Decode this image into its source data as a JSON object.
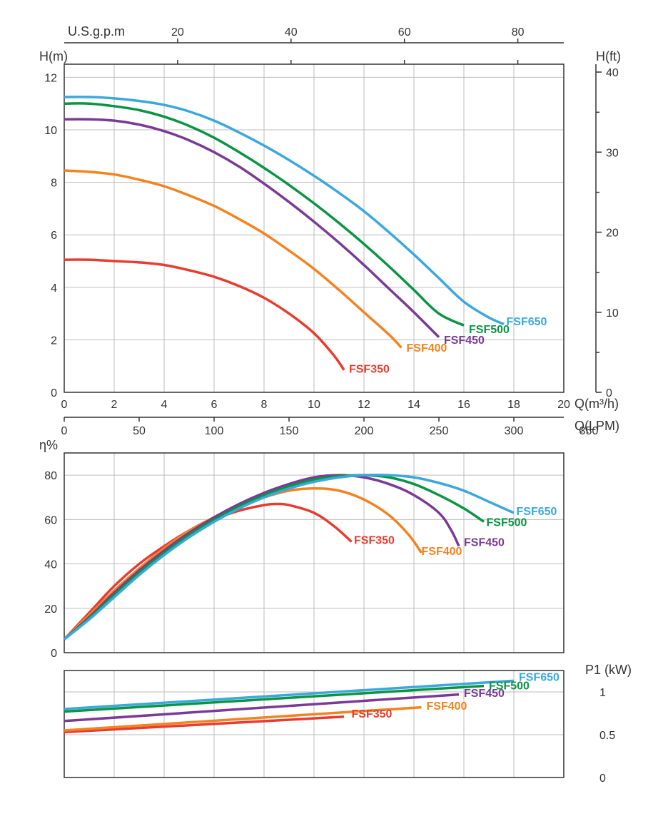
{
  "colors": {
    "fsf350": "#e73c2f",
    "fsf400": "#f58220",
    "fsf450": "#7a3a96",
    "fsf500": "#0b9444",
    "fsf650": "#3aa8dd",
    "grid": "#bdbdbd",
    "axis": "#333333",
    "bg": "#ffffff"
  },
  "labels": {
    "top_axis": "U.S.g.p.m",
    "left_axis_1": "H(m)",
    "right_axis_1": "H(ft)",
    "bottom_axis_1a": "Q(m³/h)",
    "bottom_axis_1b": "Q(LPM)",
    "left_axis_2": "η%",
    "right_axis_3": "P1 (kW)",
    "fsf350": "FSF350",
    "fsf400": "FSF400",
    "fsf450": "FSF450",
    "fsf500": "FSF500",
    "fsf650": "FSF650"
  },
  "font": {
    "axis_label_size": 18,
    "tick_size": 16,
    "series_size": 16
  },
  "chart1": {
    "type": "line",
    "xlim": [
      0,
      20
    ],
    "ylim": [
      0,
      12.5
    ],
    "xticks": [
      0,
      2,
      4,
      6,
      8,
      10,
      12,
      14,
      16,
      18,
      20
    ],
    "yticks": [
      0,
      2,
      4,
      6,
      8,
      10,
      12
    ],
    "top_ticks": [
      20,
      40,
      60,
      80
    ],
    "top_tick_x_m3h": [
      4.54,
      9.08,
      13.62,
      18.16
    ],
    "right_ticks": [
      0,
      10,
      20,
      30,
      40
    ],
    "right_tick_m": [
      0,
      3.05,
      6.1,
      9.15,
      12.2
    ],
    "right_minor_m": [
      1.52,
      4.57,
      7.62,
      10.67
    ],
    "lpm_ticks": [
      0,
      50,
      100,
      150,
      200,
      250,
      300,
      350
    ],
    "lpm_tick_x_m3h": [
      0,
      3,
      6,
      9,
      12,
      15,
      18,
      21
    ],
    "series": {
      "fsf350": [
        [
          0,
          5.05
        ],
        [
          1,
          5.05
        ],
        [
          2,
          5.0
        ],
        [
          3,
          4.95
        ],
        [
          4,
          4.85
        ],
        [
          5,
          4.65
        ],
        [
          6,
          4.4
        ],
        [
          7,
          4.05
        ],
        [
          8,
          3.6
        ],
        [
          9,
          3.0
        ],
        [
          10,
          2.25
        ],
        [
          10.8,
          1.4
        ],
        [
          11.2,
          0.85
        ]
      ],
      "fsf400": [
        [
          0,
          8.45
        ],
        [
          1,
          8.4
        ],
        [
          2,
          8.3
        ],
        [
          3,
          8.1
        ],
        [
          4,
          7.85
        ],
        [
          5,
          7.5
        ],
        [
          6,
          7.1
        ],
        [
          7,
          6.6
        ],
        [
          8,
          6.05
        ],
        [
          9,
          5.4
        ],
        [
          10,
          4.7
        ],
        [
          11,
          3.9
        ],
        [
          12,
          3.05
        ],
        [
          13,
          2.2
        ],
        [
          13.5,
          1.7
        ]
      ],
      "fsf450": [
        [
          0,
          10.4
        ],
        [
          1,
          10.4
        ],
        [
          2,
          10.35
        ],
        [
          3,
          10.2
        ],
        [
          4,
          9.95
        ],
        [
          5,
          9.6
        ],
        [
          6,
          9.15
        ],
        [
          7,
          8.6
        ],
        [
          8,
          7.95
        ],
        [
          9,
          7.25
        ],
        [
          10,
          6.5
        ],
        [
          11,
          5.7
        ],
        [
          12,
          4.85
        ],
        [
          13,
          3.95
        ],
        [
          14,
          3.05
        ],
        [
          15,
          2.1
        ]
      ],
      "fsf500": [
        [
          0,
          11.0
        ],
        [
          1,
          11.0
        ],
        [
          2,
          10.9
        ],
        [
          3,
          10.75
        ],
        [
          4,
          10.5
        ],
        [
          5,
          10.15
        ],
        [
          6,
          9.7
        ],
        [
          7,
          9.15
        ],
        [
          8,
          8.55
        ],
        [
          9,
          7.9
        ],
        [
          10,
          7.2
        ],
        [
          11,
          6.45
        ],
        [
          12,
          5.65
        ],
        [
          13,
          4.8
        ],
        [
          14,
          3.9
        ],
        [
          15,
          3.0
        ],
        [
          16,
          2.55
        ]
      ],
      "fsf650": [
        [
          0,
          11.25
        ],
        [
          1,
          11.25
        ],
        [
          2,
          11.2
        ],
        [
          3,
          11.1
        ],
        [
          4,
          10.95
        ],
        [
          5,
          10.7
        ],
        [
          6,
          10.35
        ],
        [
          7,
          9.9
        ],
        [
          8,
          9.4
        ],
        [
          9,
          8.85
        ],
        [
          10,
          8.25
        ],
        [
          11,
          7.6
        ],
        [
          12,
          6.9
        ],
        [
          13,
          6.1
        ],
        [
          14,
          5.25
        ],
        [
          15,
          4.35
        ],
        [
          16,
          3.45
        ],
        [
          17,
          2.85
        ],
        [
          17.6,
          2.6
        ]
      ]
    },
    "series_labels": {
      "fsf350": {
        "x": 11.4,
        "y": 0.75
      },
      "fsf400": {
        "x": 13.7,
        "y": 1.55
      },
      "fsf450": {
        "x": 15.2,
        "y": 1.85
      },
      "fsf500": {
        "x": 16.2,
        "y": 2.25
      },
      "fsf650": {
        "x": 17.7,
        "y": 2.55
      }
    }
  },
  "chart2": {
    "type": "line",
    "xlim": [
      0,
      20
    ],
    "ylim": [
      0,
      90
    ],
    "xticks": [
      0,
      2,
      4,
      6,
      8,
      10,
      12,
      14,
      16,
      18,
      20
    ],
    "yticks": [
      0,
      20,
      40,
      60,
      80
    ],
    "series": {
      "fsf350": [
        [
          0,
          6
        ],
        [
          1,
          18
        ],
        [
          2,
          30
        ],
        [
          3,
          40
        ],
        [
          4,
          48
        ],
        [
          5,
          55
        ],
        [
          6,
          60
        ],
        [
          7,
          64
        ],
        [
          8,
          66.5
        ],
        [
          8.5,
          67
        ],
        [
          9,
          66.5
        ],
        [
          10,
          63
        ],
        [
          10.8,
          57
        ],
        [
          11.5,
          50
        ]
      ],
      "fsf400": [
        [
          0,
          6
        ],
        [
          1,
          17
        ],
        [
          2,
          28
        ],
        [
          3,
          38
        ],
        [
          4,
          47
        ],
        [
          5,
          55
        ],
        [
          6,
          61
        ],
        [
          7,
          66
        ],
        [
          8,
          70
        ],
        [
          9,
          73
        ],
        [
          10,
          74
        ],
        [
          11,
          73
        ],
        [
          12,
          69
        ],
        [
          13,
          62
        ],
        [
          13.8,
          53
        ],
        [
          14.3,
          45
        ]
      ],
      "fsf450": [
        [
          0,
          6
        ],
        [
          1,
          16
        ],
        [
          2,
          27
        ],
        [
          3,
          37
        ],
        [
          4,
          46
        ],
        [
          5,
          54
        ],
        [
          6,
          61
        ],
        [
          7,
          67
        ],
        [
          8,
          72
        ],
        [
          9,
          76
        ],
        [
          10,
          79
        ],
        [
          11,
          80
        ],
        [
          12,
          79
        ],
        [
          13,
          76
        ],
        [
          14,
          71
        ],
        [
          15,
          63
        ],
        [
          15.5,
          55
        ],
        [
          15.8,
          48
        ]
      ],
      "fsf500": [
        [
          0,
          6
        ],
        [
          1,
          15.5
        ],
        [
          2,
          26
        ],
        [
          3,
          36
        ],
        [
          4,
          45
        ],
        [
          5,
          53
        ],
        [
          6,
          60
        ],
        [
          7,
          66
        ],
        [
          8,
          71
        ],
        [
          9,
          75
        ],
        [
          10,
          78
        ],
        [
          11,
          79.5
        ],
        [
          12,
          80
        ],
        [
          13,
          79
        ],
        [
          14,
          76
        ],
        [
          15,
          71
        ],
        [
          16,
          65
        ],
        [
          16.8,
          59
        ]
      ],
      "fsf650": [
        [
          0,
          6
        ],
        [
          1,
          15
        ],
        [
          2,
          25
        ],
        [
          3,
          35
        ],
        [
          4,
          44
        ],
        [
          5,
          52
        ],
        [
          6,
          59
        ],
        [
          7,
          65
        ],
        [
          8,
          70
        ],
        [
          9,
          74
        ],
        [
          10,
          77
        ],
        [
          11,
          79
        ],
        [
          12,
          80
        ],
        [
          13,
          80
        ],
        [
          14,
          79
        ],
        [
          15,
          76.5
        ],
        [
          16,
          73
        ],
        [
          17,
          68
        ],
        [
          18,
          63
        ]
      ]
    },
    "series_labels": {
      "fsf350": {
        "x": 11.6,
        "y": 49
      },
      "fsf400": {
        "x": 14.3,
        "y": 44
      },
      "fsf450": {
        "x": 16.0,
        "y": 48
      },
      "fsf500": {
        "x": 16.9,
        "y": 57
      },
      "fsf650": {
        "x": 18.1,
        "y": 62
      }
    }
  },
  "chart3": {
    "type": "line",
    "xlim": [
      0,
      20
    ],
    "ylim": [
      0,
      1.25
    ],
    "xticks": [
      0,
      2,
      4,
      6,
      8,
      10,
      12,
      14,
      16,
      18,
      20
    ],
    "yticks": [
      0,
      0.5,
      1
    ],
    "series": {
      "fsf350": [
        [
          0,
          0.53
        ],
        [
          11.2,
          0.71
        ]
      ],
      "fsf400": [
        [
          0,
          0.55
        ],
        [
          14.3,
          0.82
        ]
      ],
      "fsf450": [
        [
          0,
          0.66
        ],
        [
          15.8,
          0.97
        ]
      ],
      "fsf500": [
        [
          0,
          0.77
        ],
        [
          16.8,
          1.07
        ]
      ],
      "fsf650": [
        [
          0,
          0.8
        ],
        [
          18,
          1.13
        ]
      ]
    },
    "series_labels": {
      "fsf350": {
        "x": 11.5,
        "y": 0.7
      },
      "fsf400": {
        "x": 14.5,
        "y": 0.79
      },
      "fsf450": {
        "x": 16.0,
        "y": 0.94
      },
      "fsf500": {
        "x": 17.0,
        "y": 1.03
      },
      "fsf650": {
        "x": 18.2,
        "y": 1.13
      }
    }
  }
}
